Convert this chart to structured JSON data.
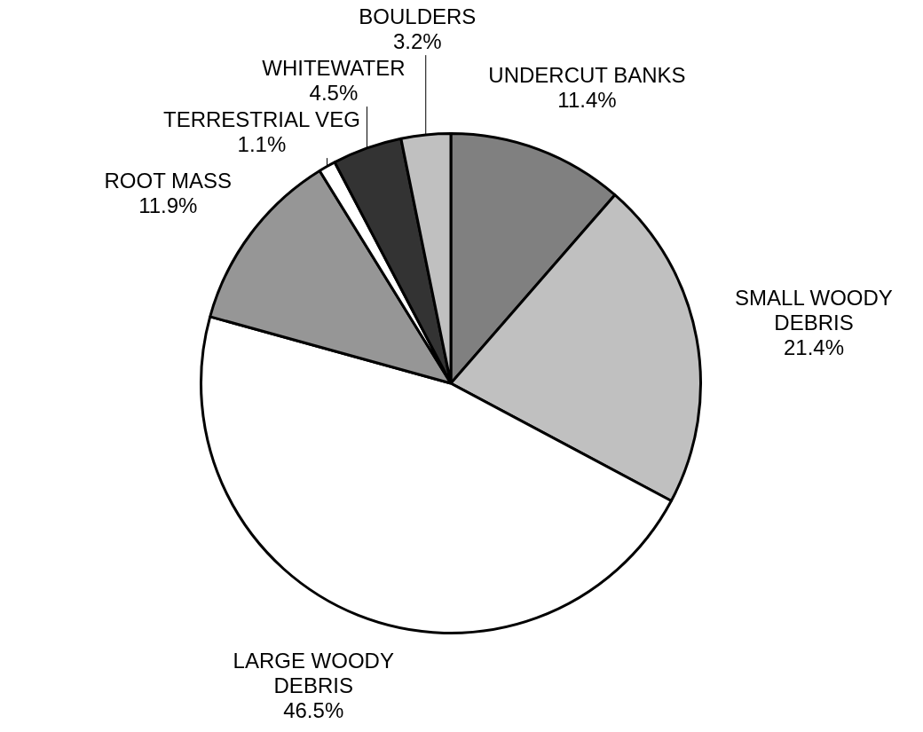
{
  "chart_data": {
    "type": "pie",
    "categories": [
      "UNDERCUT BANKS",
      "SMALL WOODY DEBRIS",
      "LARGE WOODY DEBRIS",
      "ROOT MASS",
      "TERRESTRIAL VEG",
      "WHITEWATER",
      "BOULDERS"
    ],
    "values": [
      11.4,
      21.4,
      46.5,
      11.9,
      1.1,
      4.5,
      3.2
    ],
    "value_labels": [
      "11.4%",
      "21.4%",
      "46.5%",
      "11.9%",
      "1.1%",
      "4.5%",
      "3.2%"
    ],
    "colors": [
      "#808080",
      "#c0c0c0",
      "#ffffff",
      "#969696",
      "#ffffff",
      "#333333",
      "#c0c0c0"
    ],
    "legend": false
  }
}
